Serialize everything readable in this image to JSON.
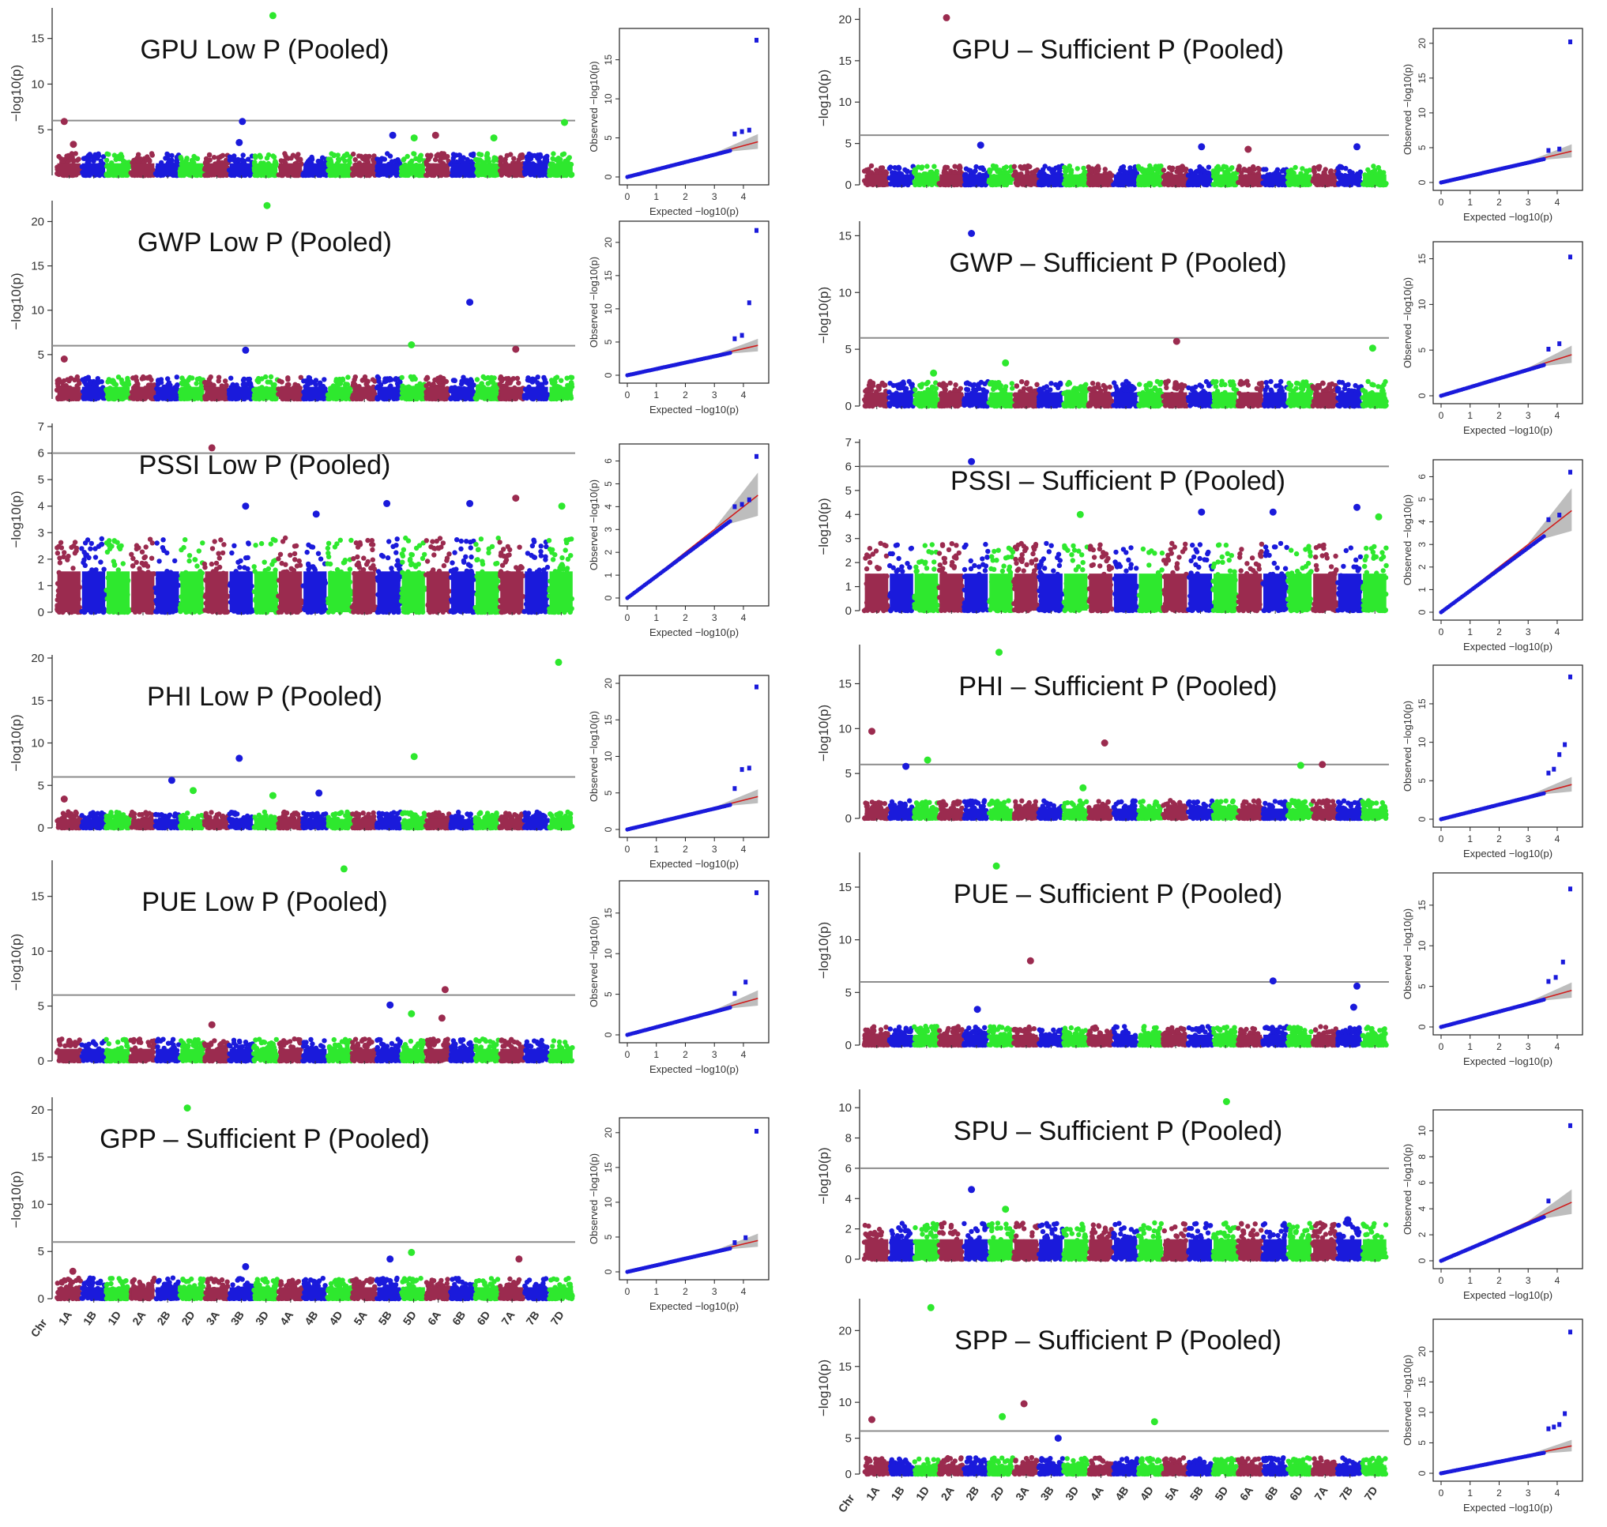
{
  "figure": {
    "colors": {
      "c1": "#9b2b4f",
      "c2": "#1a1adb",
      "c3": "#2ee82e",
      "threshold": "#8c8c8c",
      "qq_fit": "#d01c1c",
      "qq_band": "#bdbdbd",
      "qq_point": "#1a1adb",
      "axis": "#333333"
    },
    "chromosome_axis": {
      "label": "Chr",
      "chromosomes": [
        "1A",
        "1B",
        "1D",
        "2A",
        "2B",
        "2D",
        "3A",
        "3B",
        "3D",
        "4A",
        "4B",
        "4D",
        "5A",
        "5B",
        "5D",
        "6A",
        "6B",
        "6D",
        "7A",
        "7B",
        "7D"
      ]
    },
    "manhattan_ylabel": "−log10(p)",
    "qq_xlabel": "Expected  −log10(p)",
    "qq_ylabel": "Observed  −log10(p)"
  },
  "chart_data": [
    {
      "type": "scatter",
      "kind": "manhattan",
      "panel": "left-1",
      "title": "GPU Low P (Pooled)",
      "ylim": [
        0,
        18
      ],
      "yticks": [
        5,
        10,
        15
      ],
      "threshold": 6,
      "base_max": 2.4,
      "show_chr_labels": false,
      "peaks": [
        {
          "chr": "1A",
          "y": 5.9
        },
        {
          "chr": "1A",
          "y": 3.4
        },
        {
          "chr": "3B",
          "y": 5.9
        },
        {
          "chr": "3B",
          "y": 3.6
        },
        {
          "chr": "3D",
          "y": 17.5
        },
        {
          "chr": "5B",
          "y": 4.4
        },
        {
          "chr": "5D",
          "y": 4.1
        },
        {
          "chr": "6A",
          "y": 4.4
        },
        {
          "chr": "6D",
          "y": 4.1
        },
        {
          "chr": "7D",
          "y": 5.8
        }
      ],
      "qq": {
        "xlim": [
          0,
          4.6
        ],
        "ylim": [
          0,
          18
        ],
        "xticks": [
          0,
          1,
          2,
          3,
          4
        ],
        "yticks": [
          0,
          5,
          10,
          15
        ],
        "top": [
          5.5,
          5.8,
          6.0,
          17.5
        ]
      }
    },
    {
      "type": "scatter",
      "kind": "manhattan",
      "panel": "left-2",
      "title": "GWP Low P (Pooled)",
      "ylim": [
        0,
        22
      ],
      "yticks": [
        5,
        10,
        15,
        20
      ],
      "threshold": 6,
      "base_max": 2.5,
      "show_chr_labels": false,
      "peaks": [
        {
          "chr": "1A",
          "y": 4.5
        },
        {
          "chr": "3B",
          "y": 5.5
        },
        {
          "chr": "3D",
          "y": 21.8
        },
        {
          "chr": "5D",
          "y": 6.1
        },
        {
          "chr": "6B",
          "y": 10.9
        },
        {
          "chr": "7A",
          "y": 5.6
        }
      ],
      "qq": {
        "xlim": [
          0,
          4.6
        ],
        "ylim": [
          0,
          22
        ],
        "xticks": [
          0,
          1,
          2,
          3,
          4
        ],
        "yticks": [
          0,
          5,
          10,
          15,
          20
        ],
        "top": [
          5.5,
          6.0,
          10.9,
          21.8
        ]
      }
    },
    {
      "type": "scatter",
      "kind": "manhattan",
      "panel": "left-3",
      "title": "PSSI Low P (Pooled)",
      "ylim": [
        0,
        7
      ],
      "yticks": [
        0,
        1,
        2,
        3,
        4,
        5,
        6,
        7
      ],
      "threshold": 6,
      "base_max": 2.8,
      "show_chr_labels": false,
      "peaks": [
        {
          "chr": "3A",
          "y": 6.2
        },
        {
          "chr": "3B",
          "y": 4.0
        },
        {
          "chr": "4B",
          "y": 3.7
        },
        {
          "chr": "5B",
          "y": 4.1
        },
        {
          "chr": "6B",
          "y": 4.1
        },
        {
          "chr": "7A",
          "y": 4.3
        },
        {
          "chr": "7D",
          "y": 4.0
        }
      ],
      "qq": {
        "xlim": [
          0,
          4.6
        ],
        "ylim": [
          0,
          6.4
        ],
        "xticks": [
          0,
          1,
          2,
          3,
          4
        ],
        "yticks": [
          0,
          1,
          2,
          3,
          4,
          5,
          6
        ],
        "top": [
          4.0,
          4.1,
          4.3,
          6.2
        ]
      }
    },
    {
      "type": "scatter",
      "kind": "manhattan",
      "panel": "left-4",
      "title": "PHI Low P (Pooled)",
      "ylim": [
        0,
        20
      ],
      "yticks": [
        0,
        5,
        10,
        15,
        20
      ],
      "threshold": 6,
      "base_max": 1.9,
      "show_chr_labels": false,
      "peaks": [
        {
          "chr": "1A",
          "y": 3.4
        },
        {
          "chr": "2B",
          "y": 5.6
        },
        {
          "chr": "2D",
          "y": 4.4
        },
        {
          "chr": "3B",
          "y": 8.2
        },
        {
          "chr": "3D",
          "y": 3.8
        },
        {
          "chr": "4B",
          "y": 4.1
        },
        {
          "chr": "5D",
          "y": 8.4
        },
        {
          "chr": "7D",
          "y": 19.5
        }
      ],
      "qq": {
        "xlim": [
          0,
          4.6
        ],
        "ylim": [
          0,
          20
        ],
        "xticks": [
          0,
          1,
          2,
          3,
          4
        ],
        "yticks": [
          0,
          5,
          10,
          15,
          20
        ],
        "top": [
          5.6,
          8.2,
          8.4,
          19.5
        ]
      }
    },
    {
      "type": "scatter",
      "kind": "manhattan",
      "panel": "left-5",
      "title": "PUE Low P (Pooled)",
      "ylim": [
        0,
        18
      ],
      "yticks": [
        0,
        5,
        10,
        15
      ],
      "threshold": 6,
      "base_max": 2.0,
      "show_chr_labels": false,
      "peaks": [
        {
          "chr": "3A",
          "y": 3.3
        },
        {
          "chr": "4D",
          "y": 17.5
        },
        {
          "chr": "5B",
          "y": 5.1
        },
        {
          "chr": "5D",
          "y": 4.3
        },
        {
          "chr": "6A",
          "y": 6.5
        },
        {
          "chr": "6A",
          "y": 3.9
        }
      ],
      "qq": {
        "xlim": [
          0,
          4.6
        ],
        "ylim": [
          0,
          18
        ],
        "xticks": [
          0,
          1,
          2,
          3,
          4
        ],
        "yticks": [
          0,
          5,
          10,
          15
        ],
        "top": [
          5.1,
          6.5,
          17.5
        ]
      }
    },
    {
      "type": "scatter",
      "kind": "manhattan",
      "panel": "left-6",
      "title": "GPP – Sufficient P (Pooled)",
      "ylim": [
        0,
        21
      ],
      "yticks": [
        0,
        5,
        10,
        15,
        20
      ],
      "threshold": 6,
      "base_max": 2.2,
      "show_chr_labels": true,
      "peaks": [
        {
          "chr": "2D",
          "y": 20.2
        },
        {
          "chr": "3B",
          "y": 3.4
        },
        {
          "chr": "5B",
          "y": 4.2
        },
        {
          "chr": "5D",
          "y": 4.9
        },
        {
          "chr": "7A",
          "y": 4.2
        },
        {
          "chr": "1A",
          "y": 2.9
        }
      ],
      "qq": {
        "xlim": [
          0,
          4.6
        ],
        "ylim": [
          0,
          21
        ],
        "xticks": [
          0,
          1,
          2,
          3,
          4
        ],
        "yticks": [
          0,
          5,
          10,
          15,
          20
        ],
        "top": [
          4.2,
          4.9,
          20.2
        ]
      }
    },
    {
      "type": "scatter",
      "kind": "manhattan",
      "panel": "right-1",
      "title": "GPU – Sufficient P (Pooled)",
      "ylim": [
        0,
        21
      ],
      "yticks": [
        0,
        5,
        10,
        15,
        20
      ],
      "threshold": 6,
      "base_max": 2.3,
      "show_chr_labels": false,
      "peaks": [
        {
          "chr": "2A",
          "y": 20.2
        },
        {
          "chr": "2B",
          "y": 4.8
        },
        {
          "chr": "5B",
          "y": 4.6
        },
        {
          "chr": "6A",
          "y": 4.3
        },
        {
          "chr": "7B",
          "y": 4.6
        }
      ],
      "qq": {
        "xlim": [
          0,
          4.6
        ],
        "ylim": [
          0,
          21
        ],
        "xticks": [
          0,
          1,
          2,
          3,
          4
        ],
        "yticks": [
          0,
          5,
          10,
          15,
          20
        ],
        "top": [
          4.6,
          4.8,
          20.2
        ]
      }
    },
    {
      "type": "scatter",
      "kind": "manhattan",
      "panel": "right-2",
      "title": "GWP – Sufficient P (Pooled)",
      "ylim": [
        0,
        16
      ],
      "yticks": [
        0,
        5,
        10,
        15
      ],
      "threshold": 6,
      "base_max": 2.2,
      "show_chr_labels": false,
      "peaks": [
        {
          "chr": "2B",
          "y": 15.2
        },
        {
          "chr": "2D",
          "y": 3.8
        },
        {
          "chr": "5A",
          "y": 5.7
        },
        {
          "chr": "7D",
          "y": 5.1
        },
        {
          "chr": "1D",
          "y": 2.9
        }
      ],
      "qq": {
        "xlim": [
          0,
          4.6
        ],
        "ylim": [
          0,
          16
        ],
        "xticks": [
          0,
          1,
          2,
          3,
          4
        ],
        "yticks": [
          0,
          5,
          10,
          15
        ],
        "top": [
          5.1,
          5.7,
          15.2
        ]
      }
    },
    {
      "type": "scatter",
      "kind": "manhattan",
      "panel": "right-3",
      "title": "PSSI – Sufficient P (Pooled)",
      "ylim": [
        0,
        7
      ],
      "yticks": [
        0,
        1,
        2,
        3,
        4,
        5,
        6,
        7
      ],
      "threshold": 6,
      "base_max": 2.8,
      "show_chr_labels": false,
      "peaks": [
        {
          "chr": "2B",
          "y": 6.2
        },
        {
          "chr": "3D",
          "y": 4.0
        },
        {
          "chr": "5B",
          "y": 4.1
        },
        {
          "chr": "6B",
          "y": 4.1
        },
        {
          "chr": "7B",
          "y": 4.3
        },
        {
          "chr": "7D",
          "y": 3.9
        }
      ],
      "qq": {
        "xlim": [
          0,
          4.6
        ],
        "ylim": [
          0,
          6.4
        ],
        "xticks": [
          0,
          1,
          2,
          3,
          4
        ],
        "yticks": [
          0,
          1,
          2,
          3,
          4,
          5,
          6
        ],
        "top": [
          4.1,
          4.3,
          6.2
        ]
      }
    },
    {
      "type": "scatter",
      "kind": "manhattan",
      "panel": "right-4",
      "title": "PHI – Sufficient P (Pooled)",
      "ylim": [
        0,
        19
      ],
      "yticks": [
        0,
        5,
        10,
        15
      ],
      "threshold": 6,
      "base_max": 2.0,
      "show_chr_labels": false,
      "peaks": [
        {
          "chr": "1A",
          "y": 9.7
        },
        {
          "chr": "1B",
          "y": 5.8
        },
        {
          "chr": "1D",
          "y": 6.5
        },
        {
          "chr": "2D",
          "y": 18.5
        },
        {
          "chr": "3D",
          "y": 3.4
        },
        {
          "chr": "4A",
          "y": 8.4
        },
        {
          "chr": "6D",
          "y": 5.9
        },
        {
          "chr": "7A",
          "y": 6.0
        }
      ],
      "qq": {
        "xlim": [
          0,
          4.6
        ],
        "ylim": [
          0,
          19
        ],
        "xticks": [
          0,
          1,
          2,
          3,
          4
        ],
        "yticks": [
          0,
          5,
          10,
          15
        ],
        "top": [
          6.0,
          6.5,
          8.4,
          9.7,
          18.5
        ]
      }
    },
    {
      "type": "scatter",
      "kind": "manhattan",
      "panel": "right-5",
      "title": "PUE – Sufficient P (Pooled)",
      "ylim": [
        0,
        18
      ],
      "yticks": [
        0,
        5,
        10,
        15
      ],
      "threshold": 6,
      "base_max": 1.8,
      "show_chr_labels": false,
      "peaks": [
        {
          "chr": "2D",
          "y": 17.0
        },
        {
          "chr": "3A",
          "y": 8.0
        },
        {
          "chr": "2B",
          "y": 3.4
        },
        {
          "chr": "6B",
          "y": 6.1
        },
        {
          "chr": "7B",
          "y": 5.6
        },
        {
          "chr": "7B",
          "y": 3.6
        }
      ],
      "qq": {
        "xlim": [
          0,
          4.6
        ],
        "ylim": [
          0,
          18
        ],
        "xticks": [
          0,
          1,
          2,
          3,
          4
        ],
        "yticks": [
          0,
          5,
          10,
          15
        ],
        "top": [
          5.6,
          6.1,
          8.0,
          17.0
        ]
      }
    },
    {
      "type": "scatter",
      "kind": "manhattan",
      "panel": "right-6",
      "title": "SPU – Sufficient P (Pooled)",
      "ylim": [
        0,
        11
      ],
      "yticks": [
        0,
        2,
        4,
        6,
        8,
        10
      ],
      "threshold": 6,
      "base_max": 2.4,
      "show_chr_labels": false,
      "peaks": [
        {
          "chr": "2B",
          "y": 4.6
        },
        {
          "chr": "2D",
          "y": 3.3
        },
        {
          "chr": "5D",
          "y": 10.4
        },
        {
          "chr": "7B",
          "y": 2.6
        }
      ],
      "qq": {
        "xlim": [
          0,
          4.6
        ],
        "ylim": [
          0,
          11
        ],
        "xticks": [
          0,
          1,
          2,
          3,
          4
        ],
        "yticks": [
          0,
          2,
          4,
          6,
          8,
          10
        ],
        "top": [
          4.6,
          10.4
        ]
      }
    },
    {
      "type": "scatter",
      "kind": "manhattan",
      "panel": "right-7",
      "title": "SPP – Sufficient P (Pooled)",
      "ylim": [
        0,
        24
      ],
      "yticks": [
        0,
        5,
        10,
        15,
        20
      ],
      "threshold": 6,
      "base_max": 2.3,
      "show_chr_labels": true,
      "peaks": [
        {
          "chr": "1A",
          "y": 7.6
        },
        {
          "chr": "1D",
          "y": 23.2
        },
        {
          "chr": "2D",
          "y": 8.0
        },
        {
          "chr": "3A",
          "y": 9.8
        },
        {
          "chr": "3B",
          "y": 5.0
        },
        {
          "chr": "4D",
          "y": 7.3
        }
      ],
      "qq": {
        "xlim": [
          0,
          4.6
        ],
        "ylim": [
          0,
          24
        ],
        "xticks": [
          0,
          1,
          2,
          3,
          4
        ],
        "yticks": [
          0,
          5,
          10,
          15,
          20
        ],
        "top": [
          7.3,
          7.6,
          8.0,
          9.8,
          23.2
        ]
      }
    }
  ]
}
